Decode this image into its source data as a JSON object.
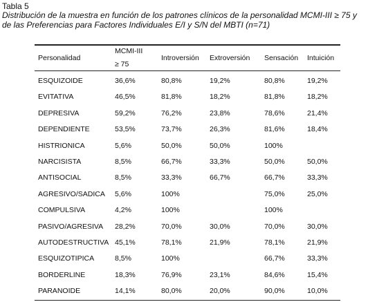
{
  "header": {
    "label": "Tabla 5",
    "caption": "Distribución de la muestra en función de los patrones clínicos de la personalidad MCMI-III ≥ 75 y de las Preferencias para Factores Individuales E/I y S/N del MBTI (n=71)"
  },
  "table": {
    "columns": [
      "Personalidad",
      "MCMI-III ≥ 75",
      "Introversión",
      "Extroversión",
      "Sensación",
      "Intuición"
    ],
    "rows": [
      [
        "ESQUIZOIDE",
        "36,6%",
        "80,8%",
        "19,2%",
        "80,8%",
        "19,2%"
      ],
      [
        "EVITATIVA",
        "46,5%",
        "81,8%",
        "18,2%",
        "81,8%",
        "18,2%"
      ],
      [
        "DEPRESIVA",
        "59,2%",
        "76,2%",
        "23,8%",
        "78,6%",
        "21,4%"
      ],
      [
        "DEPENDIENTE",
        "53,5%",
        "73,7%",
        "26,3%",
        "81,6%",
        "18,4%"
      ],
      [
        "HISTRIONICA",
        "5,6%",
        "50,0%",
        "50,0%",
        "100%",
        null
      ],
      [
        "NARCISISTA",
        "8,5%",
        "66,7%",
        "33,3%",
        "50,0%",
        "50,0%"
      ],
      [
        "ANTISOCIAL",
        "8,5%",
        "33,3%",
        "66,7%",
        "66,7%",
        "33,3%"
      ],
      [
        "AGRESIVO/SADICA",
        "5,6%",
        "100%",
        null,
        "75,0%",
        "25,0%"
      ],
      [
        "COMPULSIVA",
        "4,2%",
        "100%",
        null,
        "100%",
        null
      ],
      [
        "PASIVO/AGRESIVA",
        "28,2%",
        "70,0%",
        "30,0%",
        "70,0%",
        "30,0%"
      ],
      [
        "AUTODESTRUCTIVA",
        "45,1%",
        "78,1%",
        "21,9%",
        "78,1%",
        "21,9%"
      ],
      [
        "ESQUIZOTIPICA",
        "8,5%",
        "100%",
        null,
        "66,7%",
        "33,3%"
      ],
      [
        "BORDERLINE",
        "18,3%",
        "76,9%",
        "23,1%",
        "84,6%",
        "15,4%"
      ],
      [
        "PARANOIDE",
        "14,1%",
        "80,0%",
        "20,0%",
        "90,0%",
        "10,0%"
      ]
    ]
  }
}
